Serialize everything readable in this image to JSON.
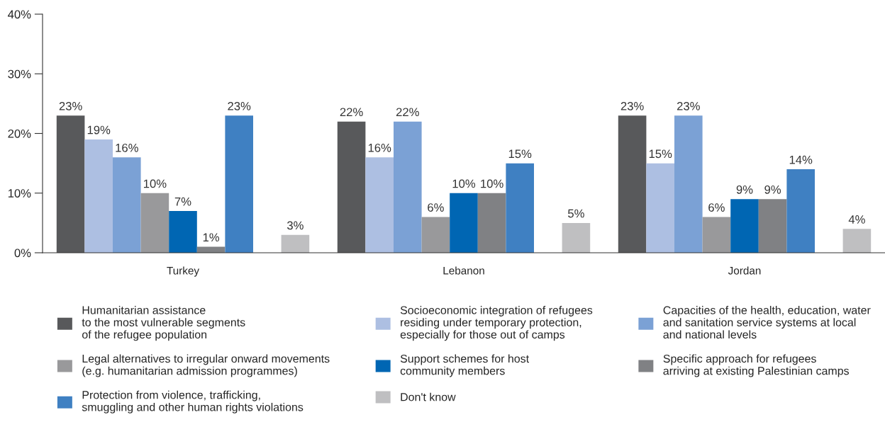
{
  "chart_data": {
    "type": "bar",
    "categories": [
      "Turkey",
      "Lebanon",
      "Jordan"
    ],
    "ylim": [
      0,
      40
    ],
    "yticks": [
      {
        "value": 0,
        "label": "0%"
      },
      {
        "value": 10,
        "label": "10%"
      },
      {
        "value": 20,
        "label": "20%"
      },
      {
        "value": 30,
        "label": "30%"
      },
      {
        "value": 40,
        "label": "40%"
      }
    ],
    "grid": false,
    "legend": "bottom",
    "series": [
      {
        "name": "Humanitarian assistance\nto the most vulnerable segments\nof the refugee population",
        "color": "#58595b",
        "values": [
          23,
          22,
          23
        ],
        "value_labels": [
          "23%",
          "22%",
          "23%"
        ]
      },
      {
        "name": "Socioeconomic integration of refugees\nresiding under temporary protection,\nespecially for those out of camps",
        "color": "#adbfe2",
        "values": [
          19,
          16,
          15
        ],
        "value_labels": [
          "19%",
          "16%",
          "15%"
        ]
      },
      {
        "name": "Capacities of the health, education, water\nand sanitation service systems at local\nand national levels",
        "color": "#7ba1d5",
        "values": [
          16,
          22,
          23
        ],
        "value_labels": [
          "16%",
          "22%",
          "23%"
        ]
      },
      {
        "name": "Legal alternatives to irregular onward movements\n(e.g. humanitarian admission programmes)",
        "color": "#99999b",
        "values": [
          10,
          6,
          6
        ],
        "value_labels": [
          "10%",
          "6%",
          "6%"
        ]
      },
      {
        "name": "Support schemes for host\ncommunity members",
        "color": "#0066b3",
        "values": [
          7,
          10,
          9
        ],
        "value_labels": [
          "7%",
          "10%",
          "9%"
        ]
      },
      {
        "name": "Specific approach for refugees\narriving at existing Palestinian camps",
        "color": "#808184",
        "values": [
          1,
          10,
          9
        ],
        "value_labels": [
          "1%",
          "10%",
          "9%"
        ]
      },
      {
        "name": "Protection from violence, trafficking,\nsmuggling and other human rights violations",
        "color": "#3f80c2",
        "values": [
          23,
          15,
          14
        ],
        "value_labels": [
          "23%",
          "15%",
          "14%"
        ]
      },
      {
        "values": [
          null,
          null,
          null
        ]
      },
      {
        "name": "Don't know",
        "color": "#bfbfc1",
        "values": [
          3,
          5,
          4
        ],
        "value_labels": [
          "3%",
          "5%",
          "4%"
        ]
      }
    ]
  }
}
